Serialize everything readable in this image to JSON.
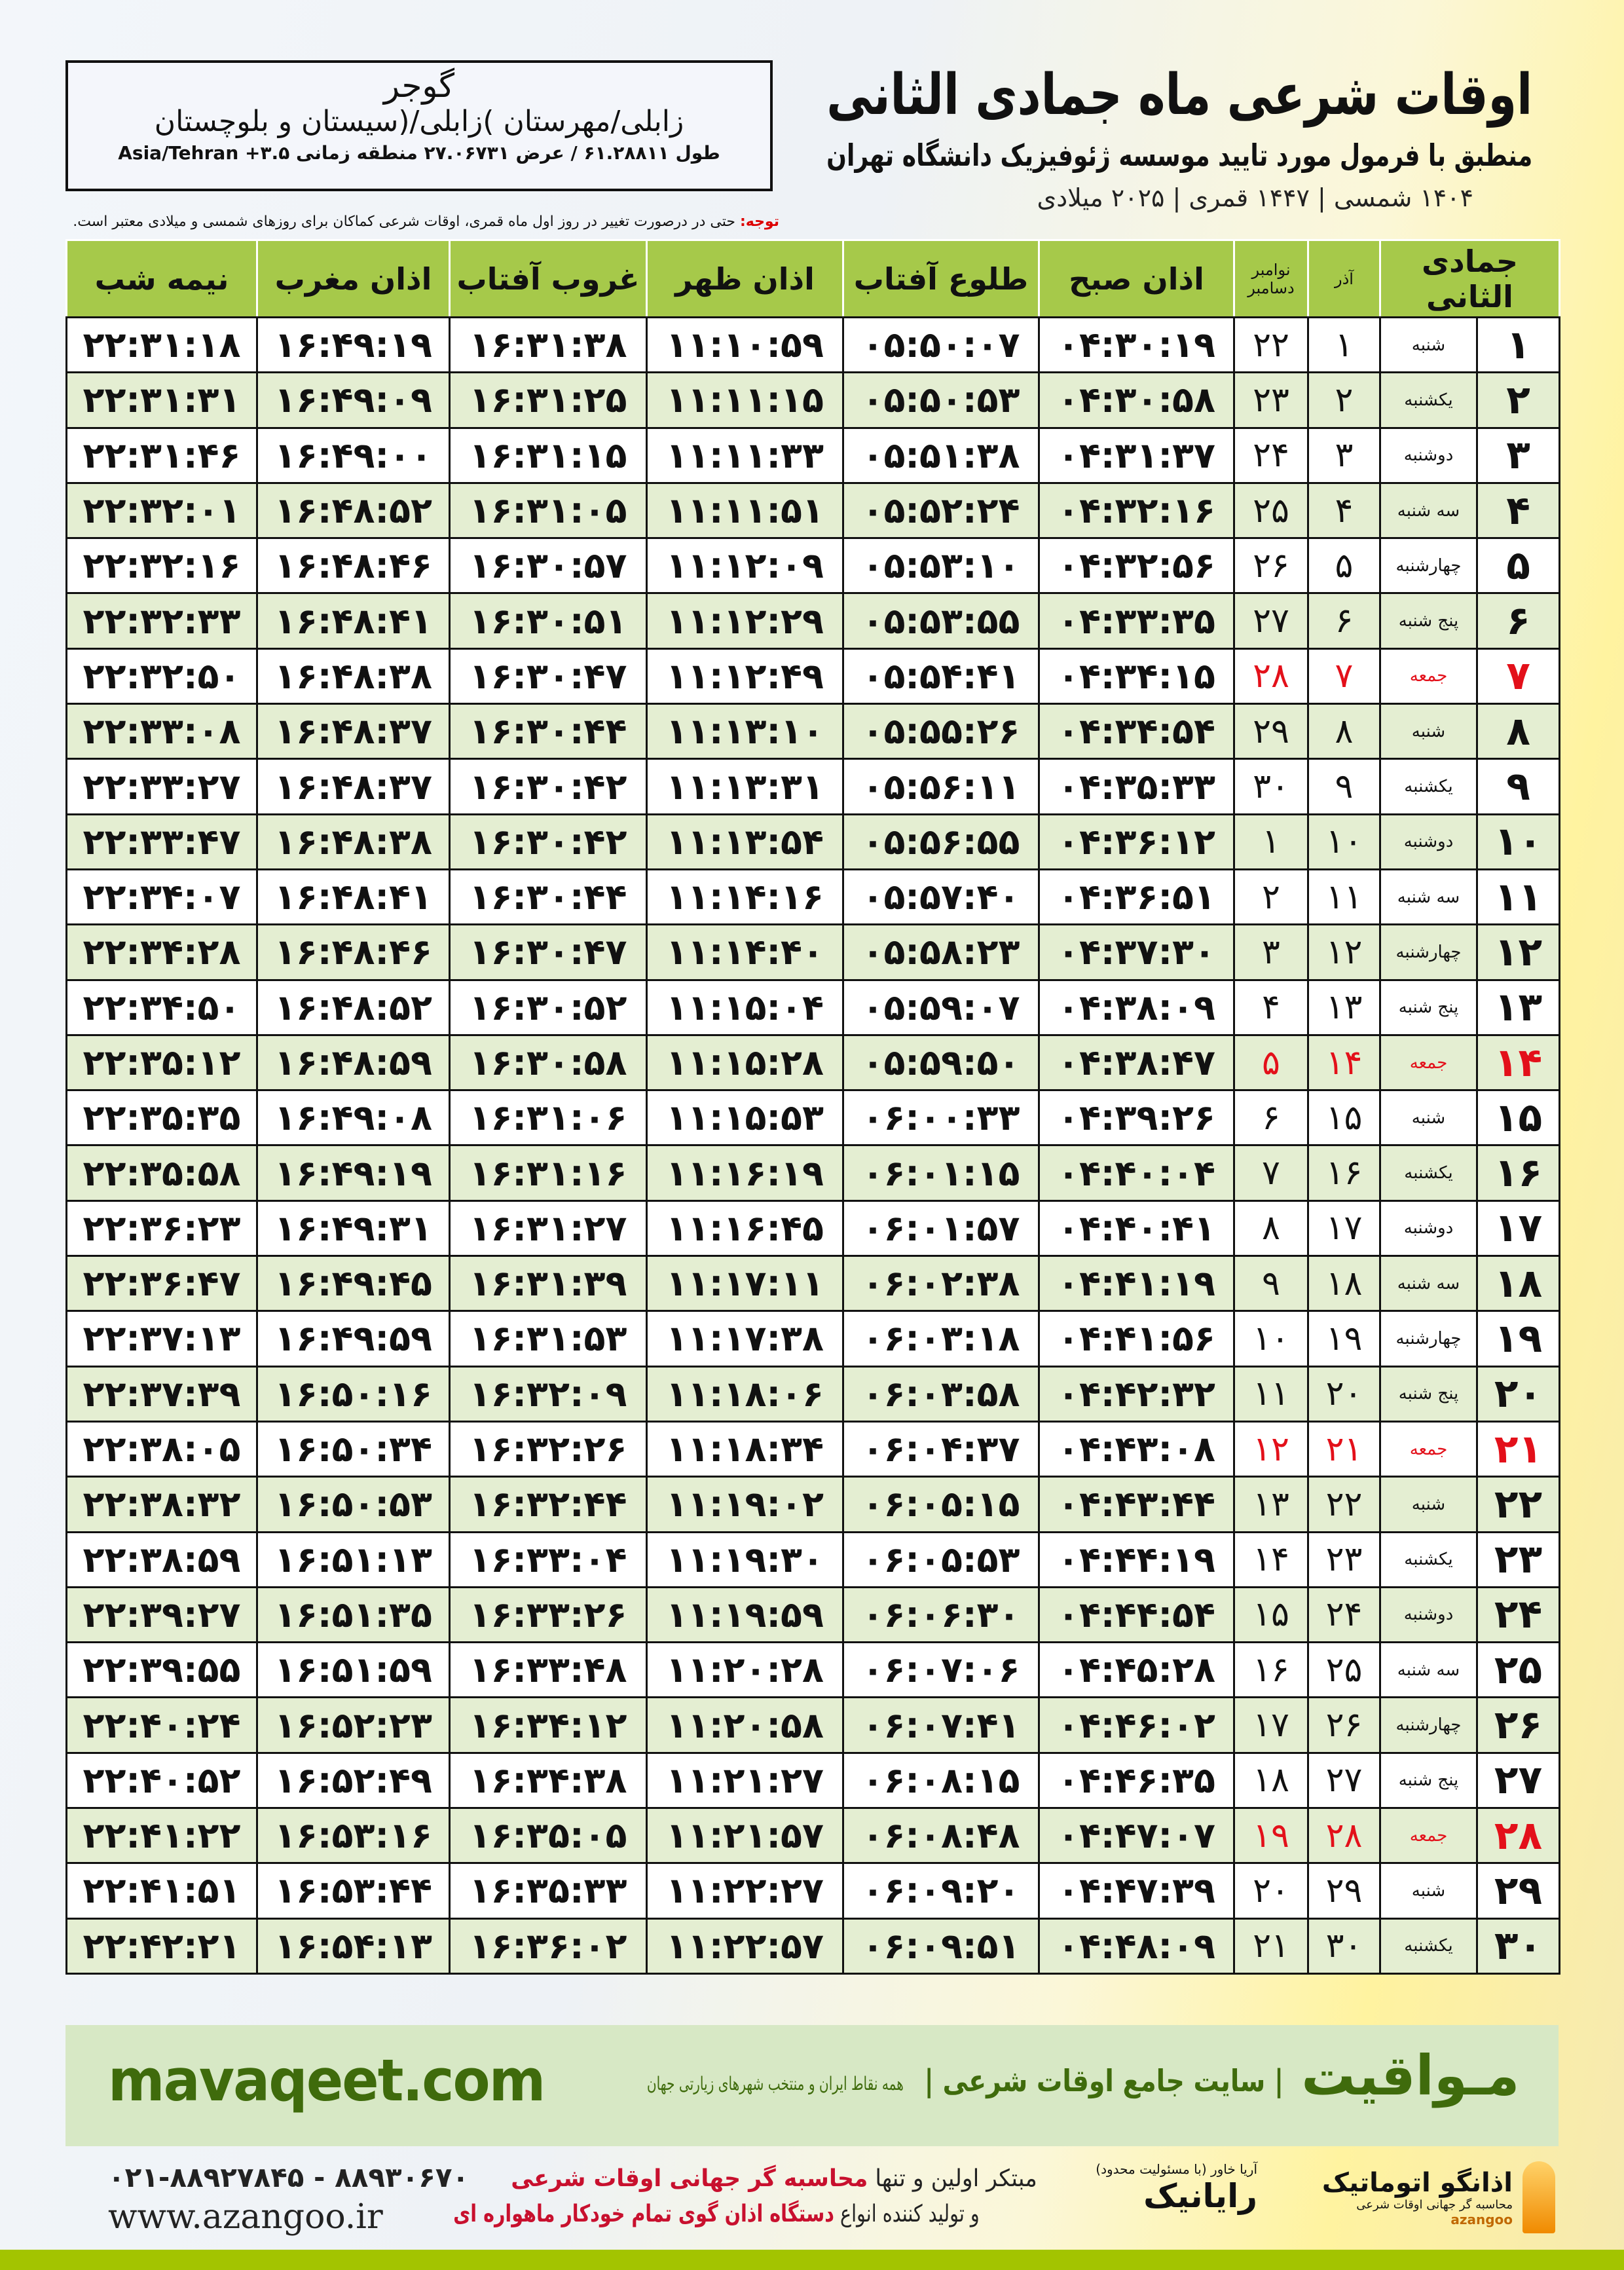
{
  "header": {
    "title": "اوقات شرعی ماه جمادی الثانی",
    "subtitle": "منطبق با فرمول مورد تایید موسسه ژئوفیزیک دانشگاه تهران",
    "dateline": "۱۴۰۴ شمسی | ۱۴۴۷ قمری | ۲۰۲۵ میلادی"
  },
  "location": {
    "city": "گوجر",
    "region": "زابلی/مهرستان )زابلی/(سیستان و بلوچستان",
    "coords": "طول ۶۱.۲۸۸۱۱ / عرض ۲۷.۰۶۷۳۱ منطقه زمانی ۳.۵+ Asia/Tehran"
  },
  "note": {
    "label": "توجه:",
    "text": " حتی در درصورت تغییر در روز اول ماه قمری، اوقات شرعی کماکان برای روزهای شمسی و میلادی معتبر است."
  },
  "table": {
    "headers": {
      "month": "جمادی الثانی",
      "azar": "آذر",
      "greg1": "نوامبر",
      "greg2": "دسامبر",
      "subh": "اذان صبح",
      "sunrise": "طلوع آفتاب",
      "dhuhr": "اذان ظهر",
      "sunset": "غروب آفتاب",
      "maghrib": "اذان مغرب",
      "midnight": "نیمه شب"
    },
    "friday_color": "#e3101a",
    "rows": [
      [
        "۱",
        "شنبه",
        "۱",
        "۲۲",
        "۰۴:۳۰:۱۹",
        "۰۵:۵۰:۰۷",
        "۱۱:۱۰:۵۹",
        "۱۶:۳۱:۳۸",
        "۱۶:۴۹:۱۹",
        "۲۲:۳۱:۱۸"
      ],
      [
        "۲",
        "یکشنبه",
        "۲",
        "۲۳",
        "۰۴:۳۰:۵۸",
        "۰۵:۵۰:۵۳",
        "۱۱:۱۱:۱۵",
        "۱۶:۳۱:۲۵",
        "۱۶:۴۹:۰۹",
        "۲۲:۳۱:۳۱"
      ],
      [
        "۳",
        "دوشنبه",
        "۳",
        "۲۴",
        "۰۴:۳۱:۳۷",
        "۰۵:۵۱:۳۸",
        "۱۱:۱۱:۳۳",
        "۱۶:۳۱:۱۵",
        "۱۶:۴۹:۰۰",
        "۲۲:۳۱:۴۶"
      ],
      [
        "۴",
        "سه شنبه",
        "۴",
        "۲۵",
        "۰۴:۳۲:۱۶",
        "۰۵:۵۲:۲۴",
        "۱۱:۱۱:۵۱",
        "۱۶:۳۱:۰۵",
        "۱۶:۴۸:۵۲",
        "۲۲:۳۲:۰۱"
      ],
      [
        "۵",
        "چهارشنبه",
        "۵",
        "۲۶",
        "۰۴:۳۲:۵۶",
        "۰۵:۵۳:۱۰",
        "۱۱:۱۲:۰۹",
        "۱۶:۳۰:۵۷",
        "۱۶:۴۸:۴۶",
        "۲۲:۳۲:۱۶"
      ],
      [
        "۶",
        "پنج شنبه",
        "۶",
        "۲۷",
        "۰۴:۳۳:۳۵",
        "۰۵:۵۳:۵۵",
        "۱۱:۱۲:۲۹",
        "۱۶:۳۰:۵۱",
        "۱۶:۴۸:۴۱",
        "۲۲:۳۲:۳۳"
      ],
      [
        "۷",
        "جمعه",
        "۷",
        "۲۸",
        "۰۴:۳۴:۱۵",
        "۰۵:۵۴:۴۱",
        "۱۱:۱۲:۴۹",
        "۱۶:۳۰:۴۷",
        "۱۶:۴۸:۳۸",
        "۲۲:۳۲:۵۰"
      ],
      [
        "۸",
        "شنبه",
        "۸",
        "۲۹",
        "۰۴:۳۴:۵۴",
        "۰۵:۵۵:۲۶",
        "۱۱:۱۳:۱۰",
        "۱۶:۳۰:۴۴",
        "۱۶:۴۸:۳۷",
        "۲۲:۳۳:۰۸"
      ],
      [
        "۹",
        "یکشنبه",
        "۹",
        "۳۰",
        "۰۴:۳۵:۳۳",
        "۰۵:۵۶:۱۱",
        "۱۱:۱۳:۳۱",
        "۱۶:۳۰:۴۲",
        "۱۶:۴۸:۳۷",
        "۲۲:۳۳:۲۷"
      ],
      [
        "۱۰",
        "دوشنبه",
        "۱۰",
        "۱",
        "۰۴:۳۶:۱۲",
        "۰۵:۵۶:۵۵",
        "۱۱:۱۳:۵۴",
        "۱۶:۳۰:۴۲",
        "۱۶:۴۸:۳۸",
        "۲۲:۳۳:۴۷"
      ],
      [
        "۱۱",
        "سه شنبه",
        "۱۱",
        "۲",
        "۰۴:۳۶:۵۱",
        "۰۵:۵۷:۴۰",
        "۱۱:۱۴:۱۶",
        "۱۶:۳۰:۴۴",
        "۱۶:۴۸:۴۱",
        "۲۲:۳۴:۰۷"
      ],
      [
        "۱۲",
        "چهارشنبه",
        "۱۲",
        "۳",
        "۰۴:۳۷:۳۰",
        "۰۵:۵۸:۲۳",
        "۱۱:۱۴:۴۰",
        "۱۶:۳۰:۴۷",
        "۱۶:۴۸:۴۶",
        "۲۲:۳۴:۲۸"
      ],
      [
        "۱۳",
        "پنج شنبه",
        "۱۳",
        "۴",
        "۰۴:۳۸:۰۹",
        "۰۵:۵۹:۰۷",
        "۱۱:۱۵:۰۴",
        "۱۶:۳۰:۵۲",
        "۱۶:۴۸:۵۲",
        "۲۲:۳۴:۵۰"
      ],
      [
        "۱۴",
        "جمعه",
        "۱۴",
        "۵",
        "۰۴:۳۸:۴۷",
        "۰۵:۵۹:۵۰",
        "۱۱:۱۵:۲۸",
        "۱۶:۳۰:۵۸",
        "۱۶:۴۸:۵۹",
        "۲۲:۳۵:۱۲"
      ],
      [
        "۱۵",
        "شنبه",
        "۱۵",
        "۶",
        "۰۴:۳۹:۲۶",
        "۰۶:۰۰:۳۳",
        "۱۱:۱۵:۵۳",
        "۱۶:۳۱:۰۶",
        "۱۶:۴۹:۰۸",
        "۲۲:۳۵:۳۵"
      ],
      [
        "۱۶",
        "یکشنبه",
        "۱۶",
        "۷",
        "۰۴:۴۰:۰۴",
        "۰۶:۰۱:۱۵",
        "۱۱:۱۶:۱۹",
        "۱۶:۳۱:۱۶",
        "۱۶:۴۹:۱۹",
        "۲۲:۳۵:۵۸"
      ],
      [
        "۱۷",
        "دوشنبه",
        "۱۷",
        "۸",
        "۰۴:۴۰:۴۱",
        "۰۶:۰۱:۵۷",
        "۱۱:۱۶:۴۵",
        "۱۶:۳۱:۲۷",
        "۱۶:۴۹:۳۱",
        "۲۲:۳۶:۲۳"
      ],
      [
        "۱۸",
        "سه شنبه",
        "۱۸",
        "۹",
        "۰۴:۴۱:۱۹",
        "۰۶:۰۲:۳۸",
        "۱۱:۱۷:۱۱",
        "۱۶:۳۱:۳۹",
        "۱۶:۴۹:۴۵",
        "۲۲:۳۶:۴۷"
      ],
      [
        "۱۹",
        "چهارشنبه",
        "۱۹",
        "۱۰",
        "۰۴:۴۱:۵۶",
        "۰۶:۰۳:۱۸",
        "۱۱:۱۷:۳۸",
        "۱۶:۳۱:۵۳",
        "۱۶:۴۹:۵۹",
        "۲۲:۳۷:۱۳"
      ],
      [
        "۲۰",
        "پنج شنبه",
        "۲۰",
        "۱۱",
        "۰۴:۴۲:۳۲",
        "۰۶:۰۳:۵۸",
        "۱۱:۱۸:۰۶",
        "۱۶:۳۲:۰۹",
        "۱۶:۵۰:۱۶",
        "۲۲:۳۷:۳۹"
      ],
      [
        "۲۱",
        "جمعه",
        "۲۱",
        "۱۲",
        "۰۴:۴۳:۰۸",
        "۰۶:۰۴:۳۷",
        "۱۱:۱۸:۳۴",
        "۱۶:۳۲:۲۶",
        "۱۶:۵۰:۳۴",
        "۲۲:۳۸:۰۵"
      ],
      [
        "۲۲",
        "شنبه",
        "۲۲",
        "۱۳",
        "۰۴:۴۳:۴۴",
        "۰۶:۰۵:۱۵",
        "۱۱:۱۹:۰۲",
        "۱۶:۳۲:۴۴",
        "۱۶:۵۰:۵۳",
        "۲۲:۳۸:۳۲"
      ],
      [
        "۲۳",
        "یکشنبه",
        "۲۳",
        "۱۴",
        "۰۴:۴۴:۱۹",
        "۰۶:۰۵:۵۳",
        "۱۱:۱۹:۳۰",
        "۱۶:۳۳:۰۴",
        "۱۶:۵۱:۱۳",
        "۲۲:۳۸:۵۹"
      ],
      [
        "۲۴",
        "دوشنبه",
        "۲۴",
        "۱۵",
        "۰۴:۴۴:۵۴",
        "۰۶:۰۶:۳۰",
        "۱۱:۱۹:۵۹",
        "۱۶:۳۳:۲۶",
        "۱۶:۵۱:۳۵",
        "۲۲:۳۹:۲۷"
      ],
      [
        "۲۵",
        "سه شنبه",
        "۲۵",
        "۱۶",
        "۰۴:۴۵:۲۸",
        "۰۶:۰۷:۰۶",
        "۱۱:۲۰:۲۸",
        "۱۶:۳۳:۴۸",
        "۱۶:۵۱:۵۹",
        "۲۲:۳۹:۵۵"
      ],
      [
        "۲۶",
        "چهارشنبه",
        "۲۶",
        "۱۷",
        "۰۴:۴۶:۰۲",
        "۰۶:۰۷:۴۱",
        "۱۱:۲۰:۵۸",
        "۱۶:۳۴:۱۲",
        "۱۶:۵۲:۲۳",
        "۲۲:۴۰:۲۴"
      ],
      [
        "۲۷",
        "پنج شنبه",
        "۲۷",
        "۱۸",
        "۰۴:۴۶:۳۵",
        "۰۶:۰۸:۱۵",
        "۱۱:۲۱:۲۷",
        "۱۶:۳۴:۳۸",
        "۱۶:۵۲:۴۹",
        "۲۲:۴۰:۵۲"
      ],
      [
        "۲۸",
        "جمعه",
        "۲۸",
        "۱۹",
        "۰۴:۴۷:۰۷",
        "۰۶:۰۸:۴۸",
        "۱۱:۲۱:۵۷",
        "۱۶:۳۵:۰۵",
        "۱۶:۵۳:۱۶",
        "۲۲:۴۱:۲۲"
      ],
      [
        "۲۹",
        "شنبه",
        "۲۹",
        "۲۰",
        "۰۴:۴۷:۳۹",
        "۰۶:۰۹:۲۰",
        "۱۱:۲۲:۲۷",
        "۱۶:۳۵:۳۳",
        "۱۶:۵۳:۴۴",
        "۲۲:۴۱:۵۱"
      ],
      [
        "۳۰",
        "یکشنبه",
        "۳۰",
        "۲۱",
        "۰۴:۴۸:۰۹",
        "۰۶:۰۹:۵۱",
        "۱۱:۲۲:۵۷",
        "۱۶:۳۶:۰۲",
        "۱۶:۵۴:۱۳",
        "۲۲:۴۲:۲۱"
      ]
    ]
  },
  "footer": {
    "brand": "مـواقیت",
    "tagline": "| سایت جامع اوقات شرعی |",
    "tagline2": "همه نقاط ایران و منتخب شهرهای زیارتی جهان",
    "site": "mavaqeet.com",
    "phones": "۰۲۱-۸۸۹۲۷۸۴۵ - ۸۸۹۳۰۶۷۰",
    "web": "www.azangoo.ir",
    "promo1a": "مبتکر اولین و تنها ",
    "promo1b": "محاسبه گر جهانی اوقات شرعی",
    "promo2a": "و تولید کننده انواع ",
    "promo2b": "دستگاه اذان گوی تمام خودکار ماهواره ای",
    "logo1": "رایانیک",
    "logo1_small": "آریا خاور (با مسئولیت محدود)",
    "logo2": "اذانگو اتوماتیک",
    "logo2_small": "محاسبه گر جهانی اوقات شرعی",
    "logo2_latin": "azangoo"
  },
  "colors": {
    "header_green": "#a6c94a",
    "row_alt": "#e4eed2",
    "brand_green": "#3f6b0c",
    "footer_band": "#d7e8c5",
    "bottom_bar": "#a3c400",
    "friday_red": "#e3101a"
  }
}
